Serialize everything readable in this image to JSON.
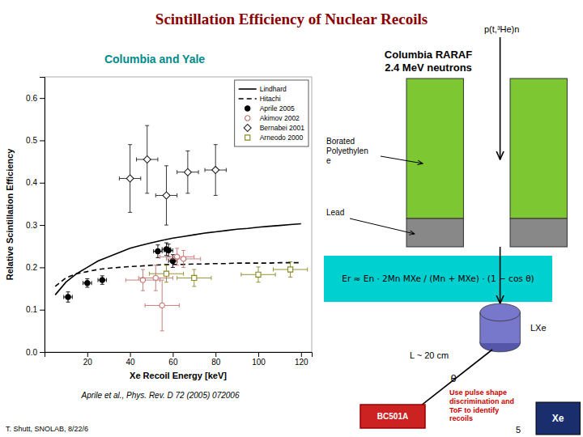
{
  "chart_data": {
    "type": "scatter",
    "title": "Scintillation Efficiency of Nuclear Recoils",
    "subtitle": "Columbia and Yale",
    "x_label": "Xe Recoil Energy [keV]",
    "y_label": "Relative Scintillation Efficiency",
    "xlim": [
      0,
      125
    ],
    "ylim": [
      0,
      0.65
    ],
    "xticks": [
      20,
      40,
      60,
      80,
      100,
      120
    ],
    "yticks": [
      {
        "value": 0,
        "label": "0.0"
      },
      0.1,
      0.2,
      0.3,
      0.4,
      0.5,
      0.6
    ],
    "grid": false,
    "legend": "upper right",
    "series": [
      {
        "name": "Lindhard",
        "type": "line",
        "color": "#000000",
        "line_style": "solid",
        "x": [
          5,
          10,
          15,
          20,
          25,
          30,
          35,
          40,
          45,
          50,
          55,
          60,
          65,
          70,
          75,
          80,
          85,
          90,
          95,
          100,
          105,
          110,
          115,
          120
        ],
        "values": [
          0.135,
          0.165,
          0.185,
          0.2,
          0.215,
          0.225,
          0.235,
          0.245,
          0.252,
          0.258,
          0.264,
          0.269,
          0.273,
          0.277,
          0.281,
          0.284,
          0.287,
          0.29,
          0.292,
          0.295,
          0.297,
          0.299,
          0.301,
          0.303
        ]
      },
      {
        "name": "Hitachi",
        "type": "line",
        "color": "#000000",
        "line_style": "dashed",
        "x": [
          5,
          10,
          15,
          20,
          25,
          30,
          35,
          40,
          45,
          50,
          55,
          60,
          65,
          70,
          75,
          80,
          85,
          90,
          95,
          100,
          105,
          110,
          115,
          120
        ],
        "values": [
          0.155,
          0.175,
          0.185,
          0.19,
          0.195,
          0.198,
          0.2,
          0.202,
          0.203,
          0.205,
          0.206,
          0.207,
          0.207,
          0.208,
          0.208,
          0.209,
          0.209,
          0.21,
          0.21,
          0.21,
          0.21,
          0.211,
          0.211,
          0.211
        ]
      },
      {
        "name": "Aprile 2005",
        "type": "scatter",
        "color": "#000000",
        "marker": "circle",
        "x": [
          11,
          20,
          27,
          53,
          57,
          58,
          60
        ],
        "values": [
          0.13,
          0.163,
          0.17,
          0.238,
          0.243,
          0.24,
          0.215
        ],
        "xerr": [
          2,
          2,
          2,
          2,
          2,
          2,
          2
        ],
        "yerr": [
          0.012,
          0.01,
          0.01,
          0.015,
          0.015,
          0.015,
          0.015
        ]
      },
      {
        "name": "Akimov 2002",
        "type": "scatter",
        "color": "#C87070",
        "marker": "circle-open",
        "x": [
          46,
          52,
          55,
          62,
          65
        ],
        "values": [
          0.17,
          0.175,
          0.11,
          0.225,
          0.22
        ],
        "xerr": [
          8,
          8,
          8,
          8,
          8
        ],
        "yerr": [
          0.025,
          0.03,
          0.06,
          0.02,
          0.02
        ]
      },
      {
        "name": "Bernabei 2001",
        "type": "scatter",
        "color": "#222222",
        "marker": "diamond-open",
        "x": [
          40,
          48,
          57,
          67,
          80
        ],
        "values": [
          0.41,
          0.455,
          0.37,
          0.425,
          0.43
        ],
        "xerr": [
          5,
          5,
          5,
          5,
          5
        ],
        "yerr": [
          0.08,
          0.08,
          0.07,
          0.05,
          0.06
        ]
      },
      {
        "name": "Arneodo 2000",
        "type": "scatter",
        "color": "#888822",
        "marker": "square-open",
        "x": [
          57,
          70,
          100,
          115
        ],
        "values": [
          0.185,
          0.175,
          0.183,
          0.195
        ],
        "xerr": [
          8,
          8,
          8,
          8
        ],
        "yerr": [
          0.02,
          0.02,
          0.018,
          0.018
        ]
      }
    ],
    "annotations": [
      "Columbia RARAF",
      "2.4 MeV neutrons",
      "p(t,³He)n",
      "Borated\nPolyethylen\ne",
      "Lead",
      "Er ≈ En · 2Mn MXe / (Mn + MXe) · (1 − cos θ)",
      "LXe",
      "L ~ 20 cm",
      "θ",
      "BC501A",
      "Use pulse shape\ndiscrimination and\nToF to identify\nrecoils",
      "Xe",
      "5",
      "Aprile et al., Phys. Rev. D 72 (2005) 072006",
      "T. Shutt, SNOLAB, 8/22/6"
    ]
  }
}
